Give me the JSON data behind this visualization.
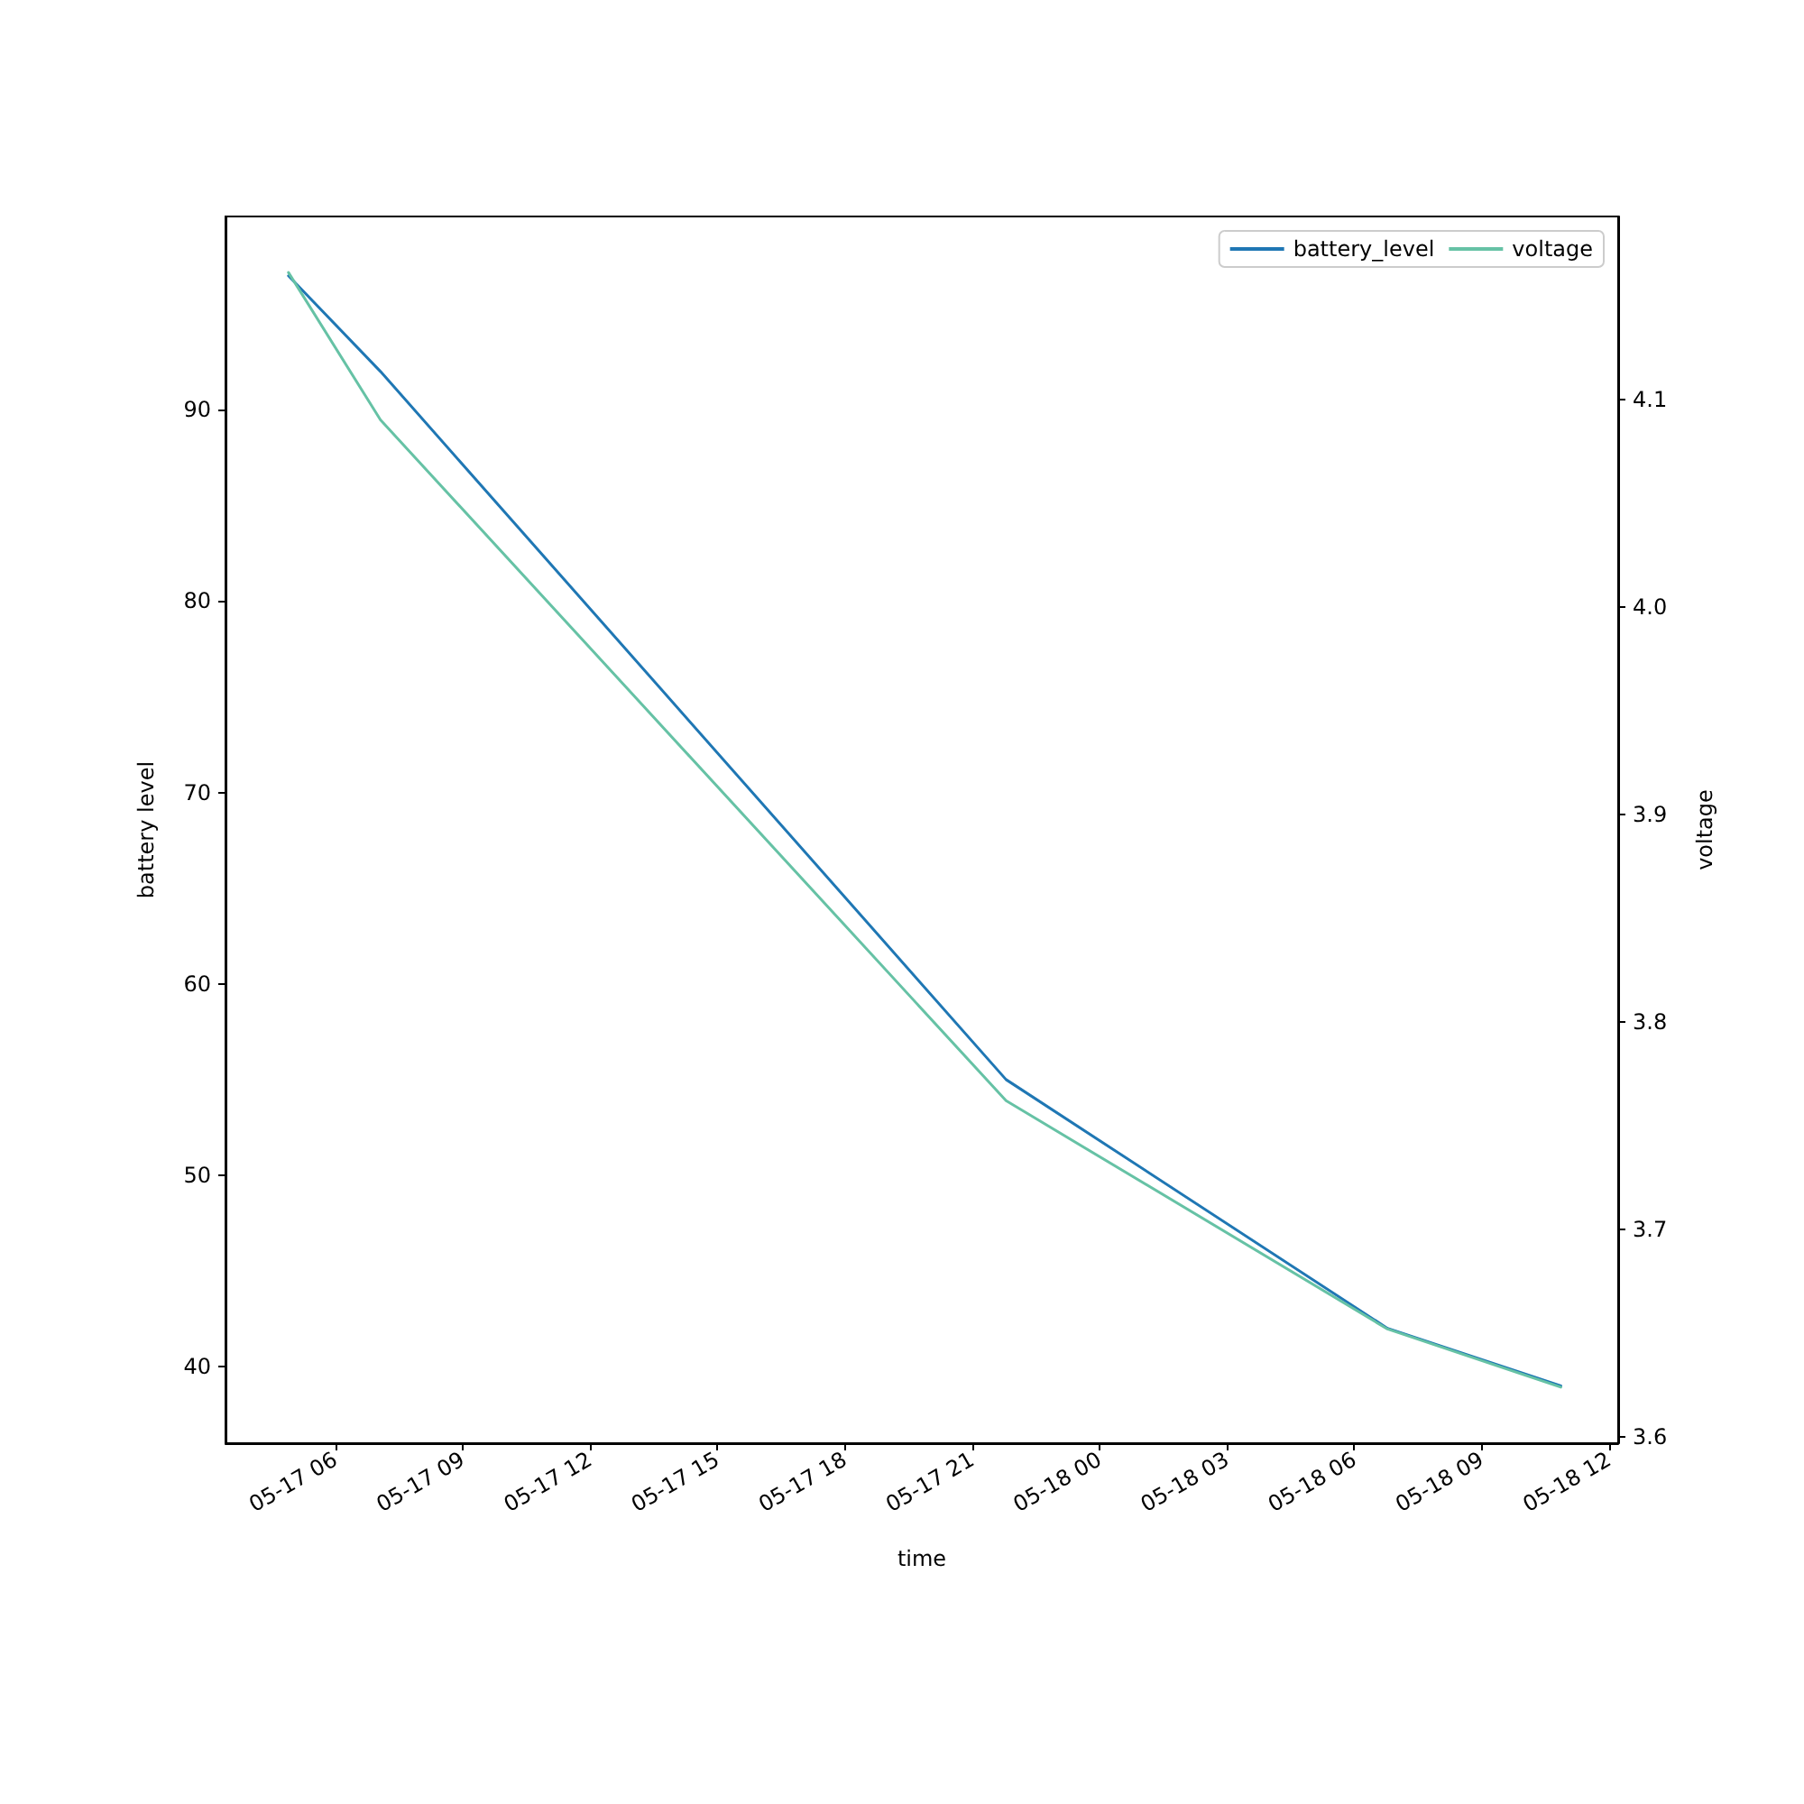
{
  "chart_data": {
    "type": "line",
    "xlabel": "time",
    "ylabel": "battery level",
    "y2label": "voltage",
    "x": [
      "--05-17T04:54",
      "--05-17T07:04",
      "--05-17T21:48",
      "--05-18T06:47",
      "--05-18T10:52"
    ],
    "series": [
      {
        "name": "battery_level",
        "color": "#1f77b4",
        "values": [
          97,
          92,
          55,
          42,
          39
        ]
      },
      {
        "name": "voltage",
        "color": "#66c2a5",
        "axis": "y2",
        "values": [
          4.161,
          4.09,
          3.762,
          3.652,
          3.624
        ]
      }
    ],
    "xlim": [
      "--05-17T03:25",
      "--05-18T12:13"
    ],
    "xticks": [
      {
        "value": "--05-17T06:00",
        "label": "05-17 06"
      },
      {
        "value": "--05-17T09:00",
        "label": "05-17 09"
      },
      {
        "value": "--05-17T12:00",
        "label": "05-17 12"
      },
      {
        "value": "--05-17T15:00",
        "label": "05-17 15"
      },
      {
        "value": "--05-17T18:00",
        "label": "05-17 18"
      },
      {
        "value": "--05-17T21:00",
        "label": "05-17 21"
      },
      {
        "value": "--05-18T00:00",
        "label": "05-18 00"
      },
      {
        "value": "--05-18T03:00",
        "label": "05-18 03"
      },
      {
        "value": "--05-18T06:00",
        "label": "05-18 06"
      },
      {
        "value": "--05-18T09:00",
        "label": "05-18 09"
      },
      {
        "value": "--05-18T12:00",
        "label": "05-18 12"
      }
    ],
    "ylim": [
      36,
      100.1
    ],
    "yticks": [
      40,
      50,
      60,
      70,
      80,
      90
    ],
    "y2lim": [
      3.597,
      4.188
    ],
    "y2ticks": [
      3.6,
      3.7,
      3.8,
      3.9,
      {
        "value": 4,
        "label": "4.0"
      },
      4.1
    ],
    "grid": false,
    "legend": "top right",
    "marker": "none",
    "line_style": "solid"
  }
}
